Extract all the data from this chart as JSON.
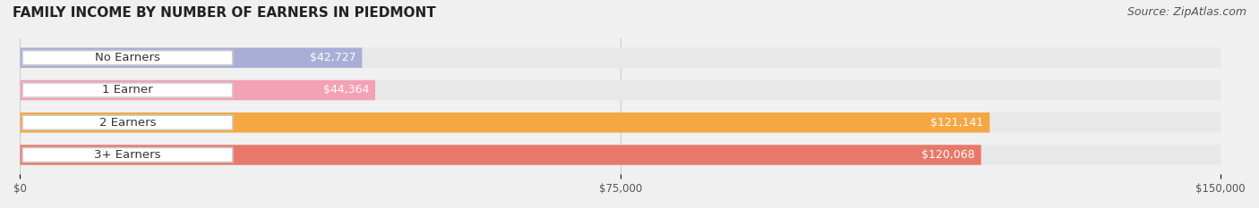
{
  "title": "FAMILY INCOME BY NUMBER OF EARNERS IN PIEDMONT",
  "source": "Source: ZipAtlas.com",
  "categories": [
    "No Earners",
    "1 Earner",
    "2 Earners",
    "3+ Earners"
  ],
  "values": [
    42727,
    44364,
    121141,
    120068
  ],
  "bar_colors": [
    "#a8aed6",
    "#f4a0b5",
    "#f5a742",
    "#e8796a"
  ],
  "label_colors": [
    "#ffffff",
    "#ffffff",
    "#ffffff",
    "#ffffff"
  ],
  "value_labels": [
    "$42,727",
    "$44,364",
    "$121,141",
    "$120,068"
  ],
  "xlim": [
    0,
    150000
  ],
  "xticks": [
    0,
    75000,
    150000
  ],
  "xtick_labels": [
    "$0",
    "$75,000",
    "$150,000"
  ],
  "background_color": "#f0f0f0",
  "bar_background_color": "#e8e8e8",
  "title_fontsize": 11,
  "source_fontsize": 9,
  "label_fontsize": 9.5,
  "value_fontsize": 9,
  "bar_height": 0.62,
  "bar_gap": 0.15
}
